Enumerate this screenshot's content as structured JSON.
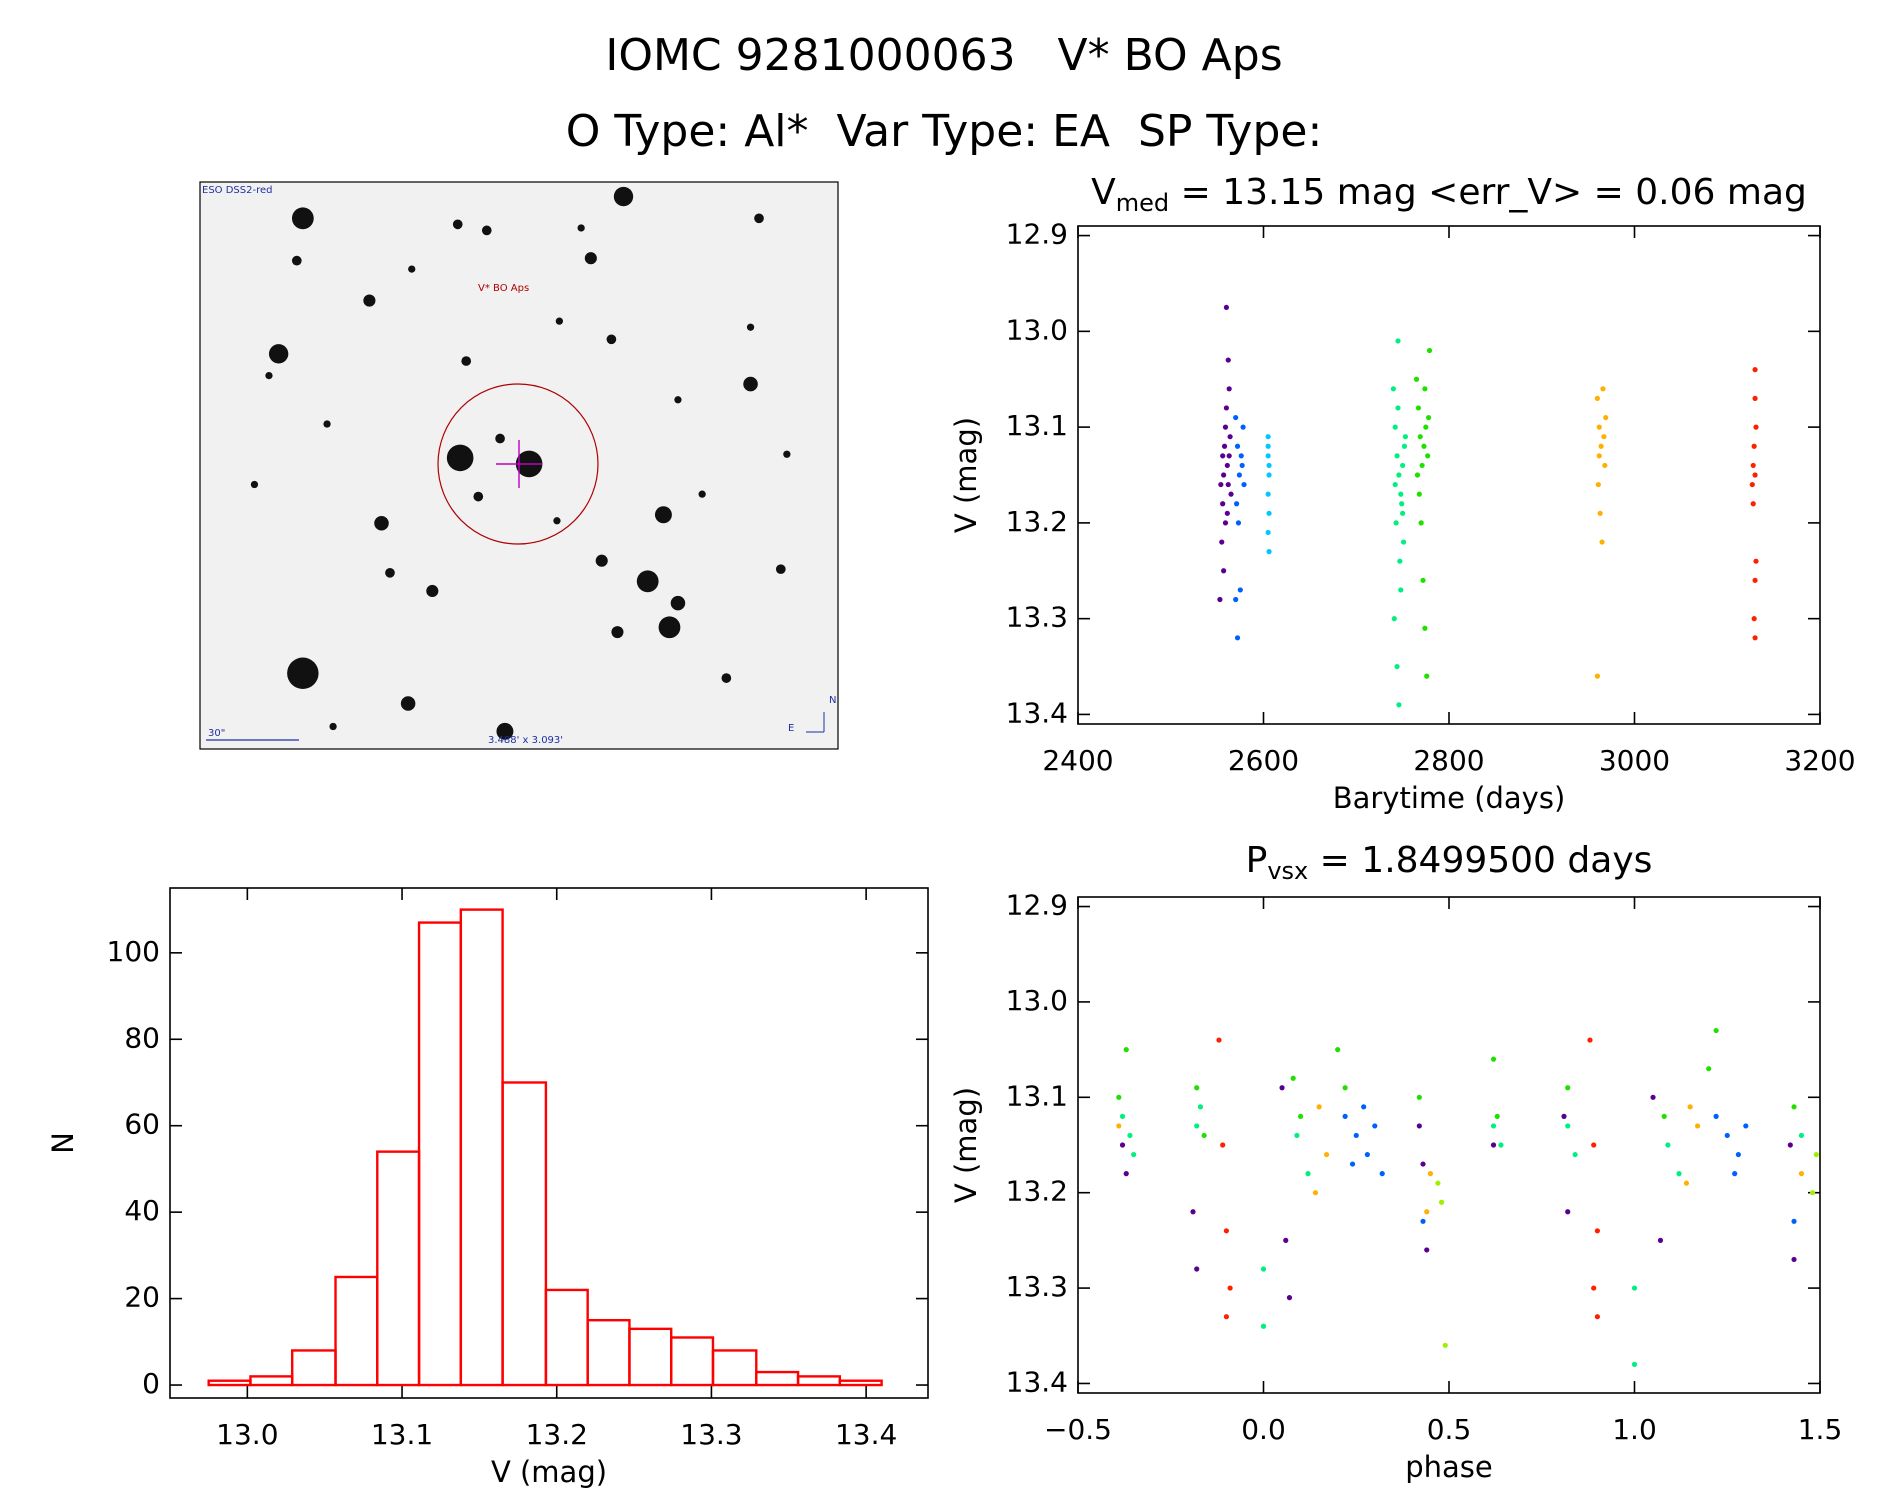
{
  "header": {
    "title": "IOMC 9281000063   V* BO Aps",
    "subtitle": "O Type: Al*  Var Type: EA  SP Type:"
  },
  "finder": {
    "survey": "ESO DSS2-red",
    "target": "V* BO Aps",
    "scale": "30\"",
    "field": "3.488' x 3.093'",
    "north": "N",
    "east": "E"
  },
  "chart_data": [
    {
      "type": "scatter",
      "title": {
        "main": "V",
        "sub": "med",
        "rest": " = 13.15 mag <err_V> = 0.06 mag"
      },
      "x_label": "Barytime (days)",
      "y_label": "V (mag)",
      "xlim": [
        2400,
        3200
      ],
      "xticks": [
        2400,
        2600,
        2800,
        3000,
        3200
      ],
      "ylim": [
        12.89,
        13.41
      ],
      "y_inverted": true,
      "yticks": [
        12.9,
        {
          "value": 13.0,
          "label": "13.0"
        },
        13.1,
        13.2,
        13.3,
        13.4
      ],
      "series": [
        {
          "color": "#5a0090",
          "x": [
            2553,
            2555,
            2556,
            2557,
            2558,
            2559,
            2560,
            2561,
            2562,
            2563,
            2564,
            2559,
            2557,
            2560,
            2562,
            2563,
            2556,
            2561,
            2565,
            2554
          ],
          "values": [
            13.28,
            13.22,
            13.18,
            13.15,
            13.12,
            13.1,
            13.08,
            13.14,
            13.16,
            13.13,
            13.11,
            13.2,
            13.25,
            12.975,
            13.03,
            13.06,
            13.13,
            13.19,
            13.17,
            13.16
          ]
        },
        {
          "color": "#0060ff",
          "x": [
            2570,
            2572,
            2574,
            2576,
            2578,
            2571,
            2573,
            2575,
            2572,
            2577,
            2579,
            2570
          ],
          "values": [
            13.09,
            13.12,
            13.15,
            13.13,
            13.1,
            13.18,
            13.2,
            13.27,
            13.32,
            13.14,
            13.16,
            13.28
          ]
        },
        {
          "color": "#00c8ff",
          "x": [
            2605,
            2605,
            2606,
            2605,
            2606,
            2605,
            2606,
            2605,
            2606
          ],
          "values": [
            13.11,
            13.13,
            13.15,
            13.17,
            13.19,
            13.21,
            13.23,
            13.12,
            13.14
          ]
        },
        {
          "color": "#00f080",
          "x": [
            2740,
            2742,
            2744,
            2746,
            2748,
            2750,
            2752,
            2745,
            2743,
            2747,
            2741,
            2744,
            2746,
            2749,
            2751,
            2753,
            2742,
            2748,
            2745,
            2750
          ],
          "values": [
            13.06,
            13.1,
            13.13,
            13.15,
            13.17,
            13.14,
            13.12,
            13.01,
            13.2,
            13.24,
            13.3,
            13.35,
            13.39,
            13.18,
            13.22,
            13.11,
            13.16,
            13.27,
            13.08,
            13.19
          ]
        },
        {
          "color": "#20e000",
          "x": [
            2765,
            2767,
            2769,
            2771,
            2773,
            2775,
            2777,
            2779,
            2768,
            2770,
            2772,
            2774,
            2776,
            2778,
            2766,
            2774
          ],
          "values": [
            13.05,
            13.08,
            13.11,
            13.14,
            13.12,
            13.1,
            13.13,
            13.02,
            13.17,
            13.2,
            13.26,
            13.31,
            13.36,
            13.09,
            13.15,
            13.06
          ]
        },
        {
          "color": "#ffb000",
          "x": [
            2960,
            2962,
            2964,
            2966,
            2968,
            2961,
            2963,
            2965,
            2967,
            2960,
            2969,
            2962
          ],
          "values": [
            13.07,
            13.1,
            13.12,
            13.06,
            13.14,
            13.16,
            13.19,
            13.22,
            13.11,
            13.36,
            13.09,
            13.13
          ]
        },
        {
          "color": "#ff2000",
          "x": [
            3130,
            3130,
            3131,
            3129,
            3128,
            3127,
            3130,
            3131,
            3130,
            3129,
            3130,
            3128
          ],
          "values": [
            13.04,
            13.07,
            13.1,
            13.12,
            13.14,
            13.16,
            13.15,
            13.24,
            13.26,
            13.3,
            13.32,
            13.18
          ]
        }
      ]
    },
    {
      "type": "histogram",
      "x_label": "V (mag)",
      "y_label": "N",
      "color": "#ff0000",
      "bins": [
        12.975,
        13.002,
        13.029,
        13.057,
        13.084,
        13.111,
        13.138,
        13.165,
        13.193,
        13.22,
        13.247,
        13.274,
        13.301,
        13.329,
        13.356,
        13.383,
        13.41
      ],
      "values": [
        1,
        2,
        8,
        25,
        54,
        107,
        110,
        70,
        22,
        15,
        13,
        11,
        8,
        3,
        2,
        1
      ],
      "xlim": [
        12.95,
        13.44
      ],
      "xticks": [
        {
          "value": 13.0,
          "label": "13.0"
        },
        13.1,
        13.2,
        13.3,
        13.4
      ],
      "ylim": [
        -3,
        115
      ],
      "yticks": [
        0,
        20,
        40,
        60,
        80,
        100
      ]
    },
    {
      "type": "scatter",
      "title": {
        "main": "P",
        "sub": "vsx",
        "rest": " = 1.8499500 days"
      },
      "x_label": "phase",
      "y_label": "V (mag)",
      "xlim": [
        -0.5,
        1.5
      ],
      "xticks": [
        {
          "value": -0.5,
          "label": "−0.5"
        },
        {
          "value": 0.0,
          "label": "0.0"
        },
        0.5,
        {
          "value": 1.0,
          "label": "1.0"
        },
        1.5
      ],
      "ylim": [
        12.89,
        13.41
      ],
      "y_inverted": true,
      "yticks": [
        12.9,
        {
          "value": 13.0,
          "label": "13.0"
        },
        13.1,
        13.2,
        13.3,
        13.4
      ],
      "series": [
        {
          "color": "#5a0090",
          "x": [
            -0.38,
            -0.37,
            -0.19,
            -0.18,
            0.05,
            0.06,
            0.07,
            0.42,
            0.43,
            0.44,
            0.62,
            0.81,
            0.82,
            1.05,
            1.07,
            1.42,
            1.43
          ],
          "values": [
            13.15,
            13.18,
            13.22,
            13.28,
            13.09,
            13.25,
            13.31,
            13.13,
            13.17,
            13.26,
            13.15,
            13.12,
            13.22,
            13.1,
            13.25,
            13.15,
            13.27
          ]
        },
        {
          "color": "#0060ff",
          "x": [
            0.22,
            0.25,
            0.28,
            0.3,
            0.32,
            0.27,
            0.24,
            1.22,
            1.25,
            1.28,
            1.3,
            1.27,
            0.43,
            1.43
          ],
          "values": [
            13.12,
            13.14,
            13.16,
            13.13,
            13.18,
            13.11,
            13.17,
            13.12,
            13.14,
            13.16,
            13.13,
            13.18,
            13.23,
            13.23
          ]
        },
        {
          "color": "#00f080",
          "x": [
            -0.38,
            -0.36,
            -0.35,
            -0.18,
            -0.17,
            0.0,
            0.0,
            0.09,
            0.12,
            0.62,
            0.64,
            0.82,
            0.84,
            1.0,
            1.0,
            1.09,
            1.12,
            1.45
          ],
          "values": [
            13.12,
            13.14,
            13.16,
            13.13,
            13.11,
            13.28,
            13.34,
            13.14,
            13.18,
            13.13,
            13.15,
            13.13,
            13.16,
            13.3,
            13.38,
            13.15,
            13.18,
            13.14
          ]
        },
        {
          "color": "#20e000",
          "x": [
            -0.39,
            -0.37,
            -0.18,
            -0.16,
            0.08,
            0.1,
            0.2,
            0.22,
            0.42,
            0.62,
            0.63,
            0.82,
            1.08,
            1.2,
            1.22,
            1.43
          ],
          "values": [
            13.1,
            13.05,
            13.09,
            13.14,
            13.08,
            13.12,
            13.05,
            13.09,
            13.1,
            13.06,
            13.12,
            13.09,
            13.12,
            13.07,
            13.03,
            13.11
          ]
        },
        {
          "color": "#ffb000",
          "x": [
            -0.39,
            0.15,
            0.17,
            0.14,
            0.45,
            0.44,
            1.15,
            1.17,
            1.14,
            1.45
          ],
          "values": [
            13.13,
            13.11,
            13.16,
            13.2,
            13.18,
            13.22,
            13.11,
            13.13,
            13.19,
            13.18
          ]
        },
        {
          "color": "#ff2000",
          "x": [
            -0.12,
            -0.11,
            -0.1,
            -0.09,
            -0.1,
            0.88,
            0.89,
            0.9,
            0.89,
            0.9
          ],
          "values": [
            13.04,
            13.15,
            13.24,
            13.3,
            13.33,
            13.04,
            13.15,
            13.24,
            13.3,
            13.33
          ]
        },
        {
          "color": "#a0f000",
          "x": [
            0.47,
            0.48,
            0.49,
            1.48,
            1.49
          ],
          "values": [
            13.19,
            13.21,
            13.36,
            13.2,
            13.16
          ]
        }
      ]
    }
  ]
}
